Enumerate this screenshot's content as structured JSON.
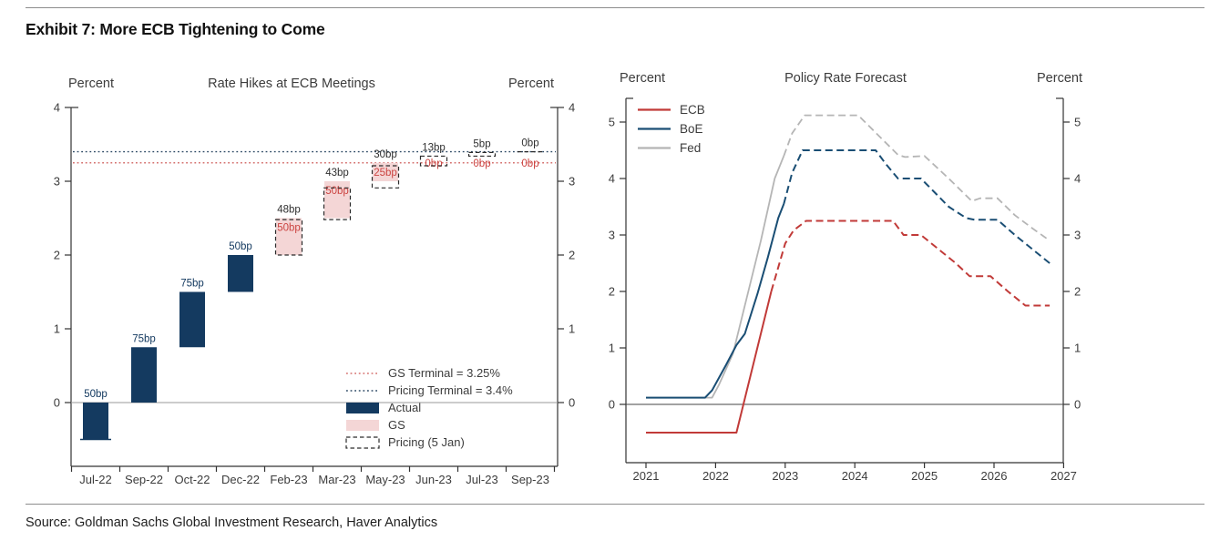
{
  "page": {
    "title": "Exhibit 7: More ECB Tightening to Come",
    "source": "Source: Goldman Sachs Global Investment Research, Haver Analytics"
  },
  "colors": {
    "navy": "#143a60",
    "navy_line": "#1a4e74",
    "navy_dotted": "#2e4a66",
    "red": "#c13a38",
    "red_dotted": "#d5706e",
    "red_label": "#cc4542",
    "pink": "#f4d6d6",
    "gray_line": "#b5b5b5",
    "dashed_box": "#2b2b2b",
    "axis": "#333333",
    "text": "#3c3c3c",
    "zero_line_left": "#9a9a9a",
    "zero_line_right": "#444444"
  },
  "chart_data": [
    {
      "id": "ecb-rate-hikes",
      "type": "bar",
      "title": "Rate Hikes at ECB Meetings",
      "ylabel_left": "Percent",
      "ylabel_right": "Percent",
      "ylim": [
        -0.9,
        4
      ],
      "yticks": [
        0,
        1,
        2,
        3,
        4
      ],
      "categories": [
        "Jul-22",
        "Sep-22",
        "Oct-22",
        "Dec-22",
        "Feb-23",
        "Mar-23",
        "May-23",
        "Jun-23",
        "Jul-23",
        "Sep-23"
      ],
      "actual_bars": [
        {
          "cat": "Jul-22",
          "from": -0.5,
          "to": 0,
          "label": "50bp",
          "base_marker": true
        },
        {
          "cat": "Sep-22",
          "from": 0,
          "to": 0.75,
          "label": "75bp"
        },
        {
          "cat": "Oct-22",
          "from": 0.75,
          "to": 1.5,
          "label": "75bp"
        },
        {
          "cat": "Dec-22",
          "from": 1.5,
          "to": 2.0,
          "label": "50bp"
        }
      ],
      "gs_bars": [
        {
          "cat": "Feb-23",
          "from": 2.0,
          "to": 2.5,
          "label": "50bp"
        },
        {
          "cat": "Mar-23",
          "from": 2.5,
          "to": 3.0,
          "label": "50bp"
        },
        {
          "cat": "May-23",
          "from": 3.0,
          "to": 3.25,
          "label": "25bp"
        },
        {
          "cat": "Jun-23",
          "label": "0bp"
        },
        {
          "cat": "Jul-23",
          "label": "0bp"
        },
        {
          "cat": "Sep-23",
          "label": "0bp"
        }
      ],
      "pricing_bars": [
        {
          "cat": "Feb-23",
          "from": 2.0,
          "to": 2.48,
          "label": "48bp"
        },
        {
          "cat": "Mar-23",
          "from": 2.48,
          "to": 2.91,
          "label": "43bp"
        },
        {
          "cat": "May-23",
          "from": 2.91,
          "to": 3.21,
          "label": "30bp"
        },
        {
          "cat": "Jun-23",
          "from": 3.21,
          "to": 3.34,
          "label": "13bp"
        },
        {
          "cat": "Jul-23",
          "from": 3.34,
          "to": 3.39,
          "label": "5bp"
        },
        {
          "cat": "Sep-23",
          "from": 3.4,
          "to": 3.4,
          "label": "0bp"
        }
      ],
      "hlines": [
        {
          "name": "gs-terminal",
          "value": 3.25,
          "label": "GS Terminal = 3.25%",
          "color_key": "red_dotted"
        },
        {
          "name": "pricing-terminal",
          "value": 3.4,
          "label": "Pricing Terminal = 3.4%",
          "color_key": "navy_dotted"
        }
      ],
      "legend": [
        {
          "label": "GS Terminal = 3.25%",
          "swatch": "dotted-red"
        },
        {
          "label": "Pricing Terminal = 3.4%",
          "swatch": "dotted-navy"
        },
        {
          "label": "Actual",
          "swatch": "navy-rect"
        },
        {
          "label": "GS",
          "swatch": "pink-rect"
        },
        {
          "label": "Pricing (5 Jan)",
          "swatch": "dashed-rect"
        }
      ]
    },
    {
      "id": "policy-rate-forecast",
      "type": "line",
      "title": "Policy Rate Forecast",
      "ylabel_left": "Percent",
      "ylabel_right": "Percent",
      "ylim": [
        -1,
        5.5
      ],
      "yticks": [
        0,
        1,
        2,
        3,
        4,
        5
      ],
      "xticks": [
        2021,
        2022,
        2023,
        2024,
        2025,
        2026,
        2027
      ],
      "series": [
        {
          "name": "Fed",
          "color_key": "gray_line",
          "width": 1.8,
          "solid": [
            [
              2021,
              0.12
            ],
            [
              2021.95,
              0.12
            ],
            [
              2022.05,
              0.35
            ],
            [
              2022.25,
              0.9
            ],
            [
              2022.45,
              1.9
            ],
            [
              2022.65,
              2.9
            ],
            [
              2022.85,
              4.0
            ],
            [
              2022.98,
              4.4
            ]
          ],
          "dashed": [
            [
              2022.98,
              4.4
            ],
            [
              2023.1,
              4.8
            ],
            [
              2023.28,
              5.12
            ],
            [
              2024.05,
              5.12
            ],
            [
              2024.35,
              4.75
            ],
            [
              2024.62,
              4.42
            ],
            [
              2024.72,
              4.38
            ],
            [
              2025.0,
              4.4
            ],
            [
              2025.35,
              4.0
            ],
            [
              2025.68,
              3.6
            ],
            [
              2025.8,
              3.65
            ],
            [
              2026.05,
              3.65
            ],
            [
              2026.3,
              3.35
            ],
            [
              2026.55,
              3.12
            ],
            [
              2026.8,
              2.9
            ]
          ]
        },
        {
          "name": "BoE",
          "color_key": "navy_line",
          "width": 2,
          "solid": [
            [
              2021,
              0.12
            ],
            [
              2021.85,
              0.12
            ],
            [
              2021.95,
              0.25
            ],
            [
              2022.15,
              0.7
            ],
            [
              2022.3,
              1.05
            ],
            [
              2022.42,
              1.25
            ],
            [
              2022.6,
              1.95
            ],
            [
              2022.75,
              2.6
            ],
            [
              2022.9,
              3.3
            ],
            [
              2022.98,
              3.55
            ]
          ],
          "dashed": [
            [
              2022.98,
              3.55
            ],
            [
              2023.1,
              4.1
            ],
            [
              2023.25,
              4.5
            ],
            [
              2024.3,
              4.5
            ],
            [
              2024.45,
              4.25
            ],
            [
              2024.62,
              4.0
            ],
            [
              2024.95,
              4.0
            ],
            [
              2025.15,
              3.75
            ],
            [
              2025.35,
              3.5
            ],
            [
              2025.6,
              3.3
            ],
            [
              2025.72,
              3.27
            ],
            [
              2026.05,
              3.27
            ],
            [
              2026.3,
              3.0
            ],
            [
              2026.55,
              2.75
            ],
            [
              2026.8,
              2.5
            ]
          ]
        },
        {
          "name": "ECB",
          "color_key": "red",
          "width": 2,
          "solid": [
            [
              2021,
              -0.5
            ],
            [
              2022.3,
              -0.5
            ],
            [
              2022.8,
              2.0
            ]
          ],
          "dashed": [
            [
              2022.8,
              2.0
            ],
            [
              2023.0,
              2.85
            ],
            [
              2023.12,
              3.08
            ],
            [
              2023.3,
              3.25
            ],
            [
              2024.55,
              3.25
            ],
            [
              2024.7,
              3.0
            ],
            [
              2024.95,
              3.0
            ],
            [
              2025.15,
              2.8
            ],
            [
              2025.45,
              2.5
            ],
            [
              2025.65,
              2.27
            ],
            [
              2025.95,
              2.27
            ],
            [
              2026.2,
              2.0
            ],
            [
              2026.45,
              1.75
            ],
            [
              2026.8,
              1.75
            ]
          ]
        }
      ],
      "legend": [
        {
          "label": "ECB",
          "color_key": "red"
        },
        {
          "label": "BoE",
          "color_key": "navy_line"
        },
        {
          "label": "Fed",
          "color_key": "gray_line"
        }
      ]
    }
  ]
}
